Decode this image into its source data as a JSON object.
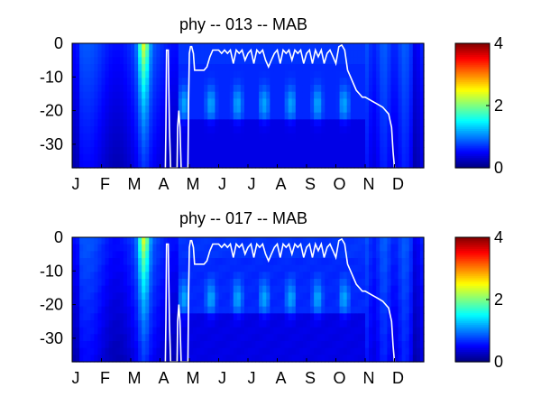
{
  "chart_data": [
    {
      "type": "heatmap",
      "title": "phy -- 013 -- MAB",
      "xlabel": "",
      "ylabel": "",
      "x_ticks": [
        "J",
        "F",
        "M",
        "A",
        "M",
        "J",
        "J",
        "A",
        "S",
        "O",
        "N",
        "D"
      ],
      "y_ticks": [
        "0",
        "-10",
        "-20",
        "-30"
      ],
      "ylim": [
        -37,
        0
      ],
      "colormap": "jet",
      "colorbar": {
        "min": 0,
        "max": 4,
        "ticks": [
          "0",
          "2",
          "4"
        ]
      },
      "white_contour": {
        "description_free": true,
        "x_month": [
          3.18,
          3.2,
          3.22,
          3.28,
          3.32,
          3.36,
          3.58,
          3.6,
          3.64,
          3.68,
          3.72,
          3.95,
          3.98,
          4.0,
          4.04,
          4.08,
          4.14,
          4.18,
          4.3,
          4.4,
          4.5,
          4.6,
          4.7,
          4.8,
          4.9,
          5.0,
          5.1,
          5.2,
          5.3,
          5.4,
          5.5,
          5.6,
          5.7,
          5.8,
          5.9,
          6.0,
          6.1,
          6.2,
          6.3,
          6.4,
          6.5,
          6.6,
          6.7,
          6.8,
          6.9,
          7.0,
          7.1,
          7.2,
          7.3,
          7.4,
          7.5,
          7.6,
          7.7,
          7.8,
          7.9,
          8.0,
          8.1,
          8.2,
          8.3,
          8.4,
          8.5,
          8.6,
          8.7,
          8.8,
          8.9,
          9.0,
          9.1,
          9.2,
          9.3,
          9.4,
          9.5,
          9.6,
          9.7,
          9.8,
          9.9,
          10.0,
          10.2,
          10.4,
          10.6,
          10.8,
          10.9,
          10.95,
          11.0
        ],
        "depth": [
          -37,
          -25,
          -2,
          -2,
          -25,
          -37,
          -37,
          -25,
          -20,
          -25,
          -37,
          -37,
          -15,
          -3,
          -1,
          -1,
          -3,
          -8,
          -8,
          -8,
          -8,
          -7,
          -4,
          -2,
          -2,
          -2,
          -3,
          -2,
          -3,
          -2,
          -6,
          -2,
          -3,
          -2,
          -5,
          -3,
          -2,
          -6,
          -2,
          -3,
          -2,
          -5,
          -7,
          -5,
          -3,
          -2,
          -6,
          -2,
          -3,
          -2,
          -5,
          -2,
          -3,
          -2,
          -6,
          -3,
          -2,
          -6,
          -2,
          -4,
          -2,
          -6,
          -3,
          -2,
          -4,
          -6,
          -1,
          -0.5,
          -2,
          -8,
          -10,
          -12,
          -14,
          -15,
          -16,
          -16,
          -17,
          -18,
          -19,
          -21,
          -25,
          -32,
          -37
        ]
      }
    },
    {
      "type": "heatmap",
      "title": "phy -- 017 -- MAB",
      "xlabel": "",
      "ylabel": "",
      "x_ticks": [
        "J",
        "F",
        "M",
        "A",
        "M",
        "J",
        "J",
        "A",
        "S",
        "O",
        "N",
        "D"
      ],
      "y_ticks": [
        "0",
        "-10",
        "-20",
        "-30"
      ],
      "ylim": [
        -37,
        0
      ],
      "colormap": "jet",
      "colorbar": {
        "min": 0,
        "max": 4,
        "ticks": [
          "0",
          "2",
          "4"
        ]
      }
    }
  ]
}
